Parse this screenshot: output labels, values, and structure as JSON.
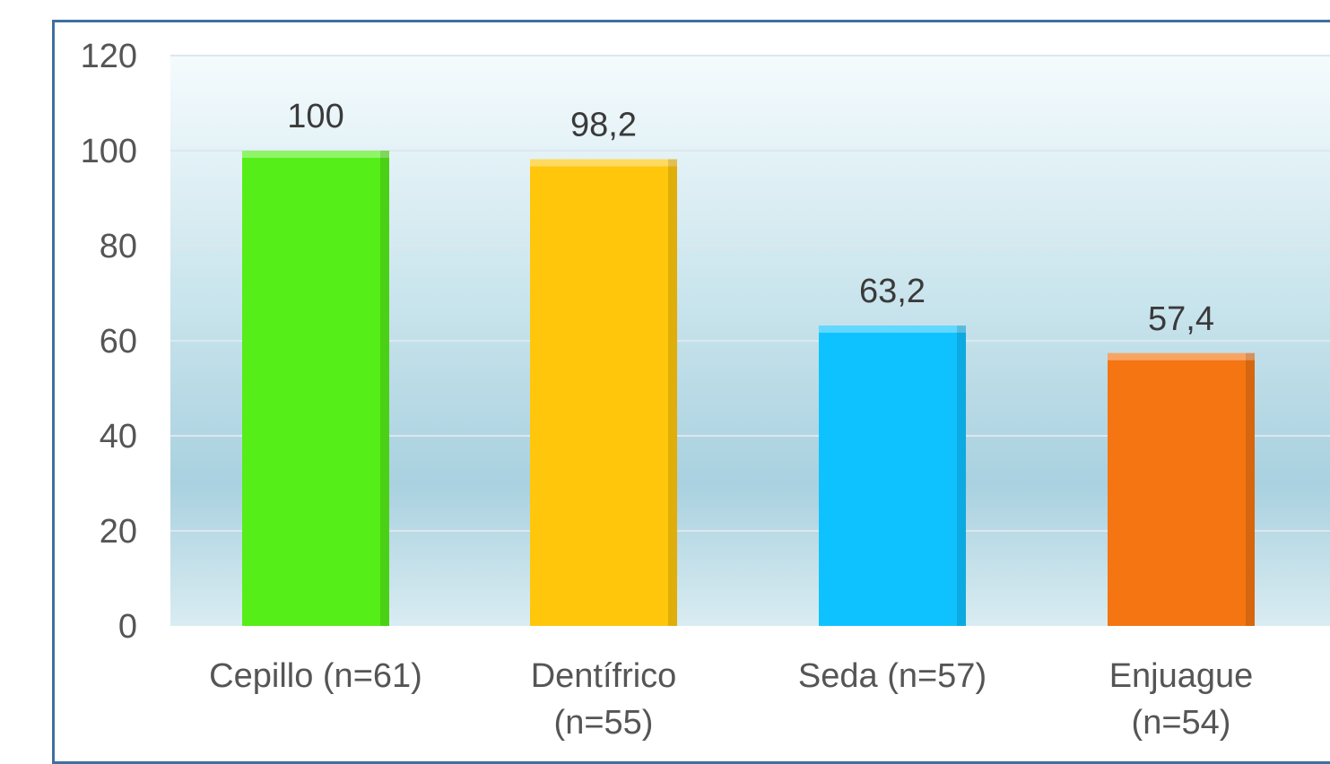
{
  "chart_data": {
    "type": "bar",
    "categories": [
      [
        "Cepillo (n=61)"
      ],
      [
        "Dentífrico",
        "(n=55)"
      ],
      [
        "Seda (n=57)"
      ],
      [
        "Enjuague",
        "(n=54)"
      ]
    ],
    "values": [
      100,
      98.2,
      63.2,
      57.4
    ],
    "value_labels": [
      "100",
      "98,2",
      "63,2",
      "57,4"
    ],
    "colors": [
      "#55ee18",
      "#ffc60c",
      "#0ec2ff",
      "#f47512"
    ],
    "ylim": [
      0,
      120
    ],
    "yticks": [
      0,
      20,
      40,
      60,
      80,
      100,
      120
    ],
    "grid": true,
    "legend": "none",
    "title": "",
    "xlabel": "",
    "ylabel": ""
  }
}
